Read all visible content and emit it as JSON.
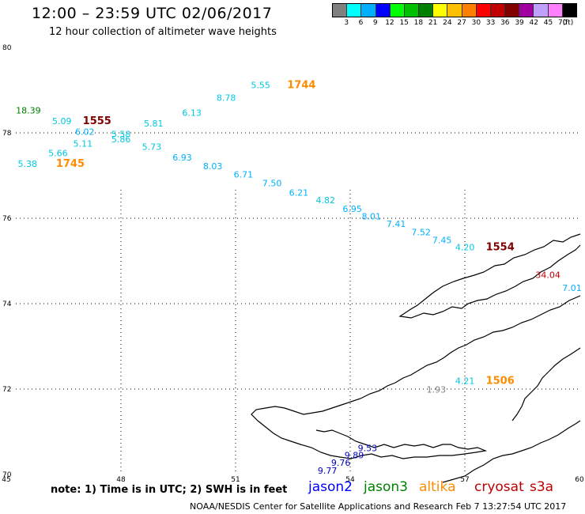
{
  "title": "12:00 – 23:59 UTC 02/06/2017",
  "subtitle": "12 hour collection of altimeter wave heights",
  "legend": {
    "unit": "(ft)",
    "colors": [
      "#808080",
      "#00ffff",
      "#00b0ff",
      "#0000ff",
      "#00ff00",
      "#00c000",
      "#008000",
      "#ffff00",
      "#ffc000",
      "#ff8000",
      "#ff0000",
      "#c00000",
      "#800000",
      "#a000a0",
      "#c0a0ff",
      "#ff80ff",
      "#000000"
    ],
    "labels": [
      "3",
      "6",
      "9",
      "12",
      "15",
      "18",
      "21",
      "24",
      "27",
      "30",
      "33",
      "36",
      "39",
      "42",
      "45",
      "70"
    ]
  },
  "axes": {
    "lon_ticks": [
      "45",
      "48",
      "51",
      "54",
      "57",
      "60"
    ],
    "lat_ticks": [
      "70",
      "72",
      "74",
      "76",
      "78",
      "80"
    ]
  },
  "points": [
    {
      "text": "18.39",
      "lon": 45.25,
      "lat": 78.45,
      "color": "#008000"
    },
    {
      "text": "5.09",
      "lon": 46.2,
      "lat": 78.2,
      "color": "#00c8e0"
    },
    {
      "text": "1555",
      "lon": 47.0,
      "lat": 78.2,
      "color": "#800000",
      "time": true
    },
    {
      "text": "6.02",
      "lon": 46.8,
      "lat": 77.95,
      "color": "#00b0ff"
    },
    {
      "text": "5.58",
      "lon": 47.75,
      "lat": 77.9,
      "color": "#00c8e0"
    },
    {
      "text": "5.86",
      "lon": 47.75,
      "lat": 77.78,
      "color": "#00c8e0"
    },
    {
      "text": "5.11",
      "lon": 46.75,
      "lat": 77.68,
      "color": "#00c8e0"
    },
    {
      "text": "5.81",
      "lon": 48.6,
      "lat": 78.15,
      "color": "#00c8e0"
    },
    {
      "text": "6.13",
      "lon": 49.6,
      "lat": 78.4,
      "color": "#00c8e0"
    },
    {
      "text": "8.78",
      "lon": 50.5,
      "lat": 78.75,
      "color": "#00c8e0"
    },
    {
      "text": "5.55",
      "lon": 51.4,
      "lat": 79.05,
      "color": "#00c8e0"
    },
    {
      "text": "1744",
      "lon": 52.35,
      "lat": 79.05,
      "color": "#ff8c00",
      "time": true
    },
    {
      "text": "5.66",
      "lon": 46.1,
      "lat": 77.45,
      "color": "#00c8e0"
    },
    {
      "text": "5.38",
      "lon": 45.3,
      "lat": 77.2,
      "color": "#00c8e0"
    },
    {
      "text": "1745",
      "lon": 46.3,
      "lat": 77.2,
      "color": "#ff8c00",
      "time": true
    },
    {
      "text": "5.73",
      "lon": 48.55,
      "lat": 77.6,
      "color": "#00c8e0"
    },
    {
      "text": "6.93",
      "lon": 49.35,
      "lat": 77.35,
      "color": "#00b0ff"
    },
    {
      "text": "8.03",
      "lon": 50.15,
      "lat": 77.15,
      "color": "#00b0ff"
    },
    {
      "text": "6.71",
      "lon": 50.95,
      "lat": 76.95,
      "color": "#00b0ff"
    },
    {
      "text": "7.50",
      "lon": 51.7,
      "lat": 76.75,
      "color": "#00b0ff"
    },
    {
      "text": "6.21",
      "lon": 52.4,
      "lat": 76.53,
      "color": "#00b0ff"
    },
    {
      "text": "4.82",
      "lon": 53.1,
      "lat": 76.35,
      "color": "#00c8e0"
    },
    {
      "text": "6.95",
      "lon": 53.8,
      "lat": 76.15,
      "color": "#00b0ff"
    },
    {
      "text": "8.01",
      "lon": 54.3,
      "lat": 75.97,
      "color": "#00b0ff"
    },
    {
      "text": "7.41",
      "lon": 54.95,
      "lat": 75.8,
      "color": "#00b0ff"
    },
    {
      "text": "7.52",
      "lon": 55.6,
      "lat": 75.6,
      "color": "#00b0ff"
    },
    {
      "text": "7.45",
      "lon": 56.15,
      "lat": 75.42,
      "color": "#00b0ff"
    },
    {
      "text": "4.20",
      "lon": 56.75,
      "lat": 75.25,
      "color": "#00c8e0"
    },
    {
      "text": "1554",
      "lon": 57.55,
      "lat": 75.25,
      "color": "#800000",
      "time": true
    },
    {
      "text": "34.04",
      "lon": 58.85,
      "lat": 74.6,
      "color": "#c00000"
    },
    {
      "text": "7.01",
      "lon": 59.55,
      "lat": 74.3,
      "color": "#00b0ff"
    },
    {
      "text": "4.21",
      "lon": 56.75,
      "lat": 72.12,
      "color": "#00c8e0"
    },
    {
      "text": "1506",
      "lon": 57.55,
      "lat": 72.12,
      "color": "#ff8c00",
      "time": true
    },
    {
      "text": "1.93",
      "lon": 56.0,
      "lat": 71.92,
      "color": "#808080"
    },
    {
      "text": "9.53",
      "lon": 54.2,
      "lat": 70.55,
      "color": "#0000c0"
    },
    {
      "text": "9.89",
      "lon": 53.85,
      "lat": 70.38,
      "color": "#0000c0"
    },
    {
      "text": "9.76",
      "lon": 53.5,
      "lat": 70.2,
      "color": "#0000c0"
    },
    {
      "text": "9.77",
      "lon": 53.15,
      "lat": 70.02,
      "color": "#0000c0"
    }
  ],
  "note": "note:  1) Time is in UTC;  2) SWH is in feet",
  "satellites": [
    {
      "name": "jason2",
      "color": "#0000ff"
    },
    {
      "name": "jason3",
      "color": "#008000"
    },
    {
      "name": "altika",
      "color": "#ff8c00"
    },
    {
      "name": "cryosat",
      "color": "#c00000"
    },
    {
      "name": "s3a",
      "color": "#c00000"
    }
  ],
  "footer": "NOAA/NESDIS Center for Satellite Applications and Research    Feb  7 13:27:54 UTC 2017"
}
